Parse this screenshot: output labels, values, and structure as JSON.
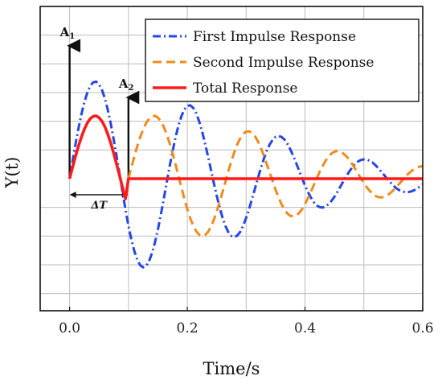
{
  "chart_data": {
    "type": "line",
    "xlabel": "Time/s",
    "ylabel": "Y(t)",
    "xlim": [
      -0.05,
      0.6
    ],
    "ylim": [
      -1.15,
      1.5
    ],
    "x_ticks": [
      "0.0",
      "0.2",
      "0.4",
      "0.6"
    ],
    "y_gridlines": [
      -1.0,
      -0.75,
      -0.5,
      -0.25,
      0.25,
      0.5,
      0.75,
      1.0,
      1.25
    ],
    "x_gridlines": [
      0.1,
      0.2,
      0.3,
      0.4,
      0.5
    ],
    "grid": true,
    "legend_position": "top-right",
    "series": [
      {
        "name": "First Impulse Response",
        "color": "#2545e6",
        "style": "dash-dot",
        "x": [
          0,
          0.005,
          0.01,
          0.015,
          0.02,
          0.025,
          0.03,
          0.035,
          0.04,
          0.045,
          0.05,
          0.055,
          0.06,
          0.065,
          0.07,
          0.075,
          0.08,
          0.085,
          0.09,
          0.095,
          0.1,
          0.105,
          0.11,
          0.115,
          0.12,
          0.125,
          0.13,
          0.135,
          0.14,
          0.145,
          0.15,
          0.155,
          0.16,
          0.165,
          0.17,
          0.175,
          0.18,
          0.185,
          0.19,
          0.195,
          0.2,
          0.205,
          0.21,
          0.215,
          0.22,
          0.225,
          0.23,
          0.235,
          0.24,
          0.245,
          0.25,
          0.255,
          0.26,
          0.265,
          0.27,
          0.275,
          0.28,
          0.285,
          0.29,
          0.295,
          0.3,
          0.305,
          0.31,
          0.315,
          0.32,
          0.325,
          0.33,
          0.335,
          0.34,
          0.345,
          0.35,
          0.355,
          0.36,
          0.365,
          0.37,
          0.375,
          0.38,
          0.385,
          0.39,
          0.395,
          0.4,
          0.405,
          0.41,
          0.415,
          0.42,
          0.425,
          0.43,
          0.435,
          0.44,
          0.445,
          0.45,
          0.455,
          0.46,
          0.465,
          0.47,
          0.475,
          0.48,
          0.485,
          0.49,
          0.495,
          0.5,
          0.505,
          0.51,
          0.515,
          0.52,
          0.525,
          0.53,
          0.535,
          0.54,
          0.545,
          0.55,
          0.555,
          0.56,
          0.565,
          0.57,
          0.575,
          0.58,
          0.585,
          0.59,
          0.595,
          0.6
        ],
        "y": [
          0,
          0.153,
          0.3,
          0.437,
          0.56,
          0.665,
          0.748,
          0.807,
          0.839,
          0.845,
          0.822,
          0.772,
          0.697,
          0.597,
          0.477,
          0.34,
          0.191,
          0.036,
          -0.12,
          -0.27,
          -0.409,
          -0.531,
          -0.631,
          -0.707,
          -0.754,
          -0.772,
          -0.76,
          -0.718,
          -0.649,
          -0.556,
          -0.442,
          -0.314,
          -0.176,
          -0.034,
          0.107,
          0.24,
          0.36,
          0.463,
          0.545,
          0.603,
          0.634,
          0.639,
          0.617,
          0.571,
          0.502,
          0.414,
          0.311,
          0.199,
          0.081,
          -0.036,
          -0.149,
          -0.252,
          -0.342,
          -0.415,
          -0.468,
          -0.499,
          -0.508,
          -0.495,
          -0.462,
          -0.41,
          -0.342,
          -0.263,
          -0.176,
          -0.085,
          0.006,
          0.093,
          0.173,
          0.242,
          0.298,
          0.339,
          0.364,
          0.372,
          0.364,
          0.341,
          0.304,
          0.256,
          0.199,
          0.136,
          0.07,
          0.004,
          -0.059,
          -0.116,
          -0.166,
          -0.205,
          -0.233,
          -0.248,
          -0.251,
          -0.242,
          -0.222,
          -0.193,
          -0.157,
          -0.115,
          -0.07,
          -0.025,
          0.02,
          0.061,
          0.097,
          0.127,
          0.149,
          0.163,
          0.168,
          0.166,
          0.156,
          0.139,
          0.116,
          0.089,
          0.059,
          0.028,
          -0.003,
          -0.032,
          -0.059,
          -0.082,
          -0.099,
          -0.111,
          -0.117,
          -0.117,
          -0.112,
          -0.102,
          -0.088,
          -0.07,
          -0.05
        ]
      },
      {
        "name": "Second Impulse Response",
        "color": "#f08a1a",
        "style": "dash",
        "x": [
          0.1,
          0.105,
          0.11,
          0.115,
          0.12,
          0.125,
          0.13,
          0.135,
          0.14,
          0.145,
          0.15,
          0.155,
          0.16,
          0.165,
          0.17,
          0.175,
          0.18,
          0.185,
          0.19,
          0.195,
          0.2,
          0.205,
          0.21,
          0.215,
          0.22,
          0.225,
          0.23,
          0.235,
          0.24,
          0.245,
          0.25,
          0.255,
          0.26,
          0.265,
          0.27,
          0.275,
          0.28,
          0.285,
          0.29,
          0.295,
          0.3,
          0.305,
          0.31,
          0.315,
          0.32,
          0.325,
          0.33,
          0.335,
          0.34,
          0.345,
          0.35,
          0.355,
          0.36,
          0.365,
          0.37,
          0.375,
          0.38,
          0.385,
          0.39,
          0.395,
          0.4,
          0.405,
          0.41,
          0.415,
          0.42,
          0.425,
          0.43,
          0.435,
          0.44,
          0.445,
          0.45,
          0.455,
          0.46,
          0.465,
          0.47,
          0.475,
          0.48,
          0.485,
          0.49,
          0.495,
          0.5,
          0.505,
          0.51,
          0.515,
          0.52,
          0.525,
          0.53,
          0.535,
          0.54,
          0.545,
          0.55,
          0.555,
          0.56,
          0.565,
          0.57,
          0.575,
          0.58,
          0.585,
          0.59,
          0.595,
          0.6
        ],
        "y": [
          0,
          0.099,
          0.194,
          0.283,
          0.362,
          0.43,
          0.484,
          0.522,
          0.543,
          0.547,
          0.532,
          0.5,
          0.451,
          0.386,
          0.309,
          0.22,
          0.124,
          0.023,
          -0.078,
          -0.175,
          -0.265,
          -0.344,
          -0.408,
          -0.457,
          -0.488,
          -0.5,
          -0.492,
          -0.465,
          -0.42,
          -0.36,
          -0.286,
          -0.203,
          -0.114,
          -0.022,
          0.069,
          0.155,
          0.233,
          0.3,
          0.353,
          0.39,
          0.41,
          0.413,
          0.399,
          0.37,
          0.325,
          0.268,
          0.201,
          0.128,
          0.052,
          -0.023,
          -0.096,
          -0.163,
          -0.221,
          -0.268,
          -0.303,
          -0.323,
          -0.329,
          -0.32,
          -0.299,
          -0.265,
          -0.221,
          -0.17,
          -0.114,
          -0.055,
          0.004,
          0.06,
          0.112,
          0.157,
          0.193,
          0.219,
          0.235,
          0.241,
          0.235,
          0.22,
          0.197,
          0.166,
          0.129,
          0.088,
          0.045,
          0.002,
          -0.038,
          -0.075,
          -0.107,
          -0.133,
          -0.151,
          -0.161,
          -0.163,
          -0.157,
          -0.144,
          -0.125,
          -0.101,
          -0.074,
          -0.045,
          -0.016,
          0.013,
          0.04,
          0.063,
          0.082,
          0.096,
          0.105,
          0.109
        ]
      },
      {
        "name": "Total Response",
        "color": "#ff1a1a",
        "style": "solid",
        "x": [
          0,
          0.005,
          0.01,
          0.015,
          0.02,
          0.025,
          0.03,
          0.035,
          0.04,
          0.045,
          0.05,
          0.055,
          0.06,
          0.065,
          0.07,
          0.075,
          0.08,
          0.085,
          0.09,
          0.095,
          0.1,
          0.6
        ],
        "y": [
          0,
          0.099,
          0.194,
          0.283,
          0.362,
          0.43,
          0.484,
          0.522,
          0.543,
          0.547,
          0.532,
          0.5,
          0.451,
          0.386,
          0.309,
          0.22,
          0.124,
          0.023,
          -0.078,
          -0.175,
          0,
          0
        ]
      }
    ],
    "annotations": {
      "a1": {
        "label": "A",
        "sub": "1",
        "x": 0.0,
        "y_from": 0,
        "y_to": 1.2
      },
      "a2": {
        "label": "A",
        "sub": "2",
        "x": 0.1,
        "y_from": 0,
        "y_to": 0.75
      },
      "delta": {
        "label": "ΔT",
        "x_from": 0.0,
        "x_to": 0.1,
        "y": -0.14
      }
    }
  }
}
